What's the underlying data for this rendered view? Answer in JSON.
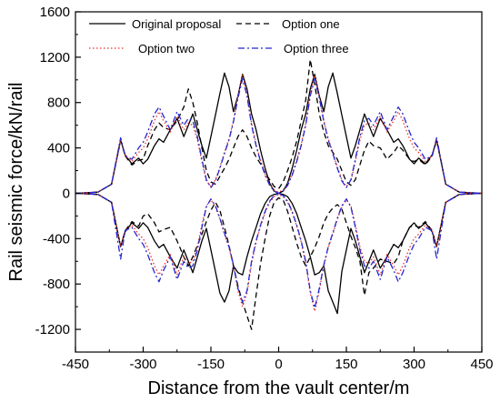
{
  "chart_data": {
    "type": "line",
    "xlabel": "Distance from the vault center/m",
    "ylabel": "Rail seismic force/kN/rail",
    "xlim": [
      -450,
      450
    ],
    "ylim": [
      -1400,
      1600
    ],
    "xticks": [
      -450,
      -300,
      -150,
      0,
      150,
      300,
      450
    ],
    "xtick_labels": [
      "-450",
      "-300",
      "-150",
      "0",
      "150",
      "300",
      "450"
    ],
    "yticks": [
      -1200,
      -800,
      -400,
      0,
      400,
      800,
      1200,
      1600
    ],
    "ytick_labels": [
      "-1200",
      "-800",
      "-400",
      "0",
      "400",
      "800",
      "1200",
      "1600"
    ],
    "grid": false,
    "legend_position": "top",
    "series": [
      {
        "name": "Original proposal",
        "color": "#000000",
        "dash": "solid",
        "x": [
          -450,
          -400,
          -370,
          -350,
          -340,
          -325,
          -310,
          -300,
          -290,
          -275,
          -265,
          -255,
          -240,
          -225,
          -210,
          -200,
          -190,
          -180,
          -170,
          -160,
          -150,
          -140,
          -130,
          -120,
          -110,
          -100,
          -90,
          -80,
          -70,
          -60,
          -50,
          -40,
          -30,
          -20,
          -10,
          0,
          10,
          20,
          30,
          40,
          50,
          60,
          70,
          80,
          90,
          100,
          110,
          120,
          130,
          140,
          150,
          160,
          170,
          180,
          190,
          200,
          210,
          225,
          240,
          255,
          265,
          275,
          290,
          300,
          310,
          325,
          340,
          350,
          370,
          400,
          450
        ],
        "upper": [
          0,
          10,
          80,
          470,
          340,
          260,
          310,
          260,
          300,
          420,
          480,
          450,
          560,
          660,
          500,
          600,
          700,
          560,
          420,
          310,
          500,
          690,
          880,
          1060,
          940,
          720,
          860,
          1050,
          920,
          700,
          560,
          380,
          220,
          90,
          20,
          0,
          20,
          90,
          220,
          380,
          560,
          700,
          920,
          1050,
          860,
          720,
          940,
          1060,
          880,
          690,
          500,
          310,
          420,
          560,
          700,
          600,
          500,
          660,
          560,
          450,
          480,
          420,
          300,
          260,
          310,
          260,
          340,
          470,
          80,
          10,
          0
        ],
        "lower": [
          0,
          -10,
          -80,
          -470,
          -340,
          -260,
          -310,
          -260,
          -300,
          -420,
          -480,
          -450,
          -560,
          -660,
          -500,
          -600,
          -700,
          -560,
          -420,
          -310,
          -500,
          -690,
          -880,
          -960,
          -860,
          -640,
          -700,
          -720,
          -560,
          -420,
          -300,
          -180,
          -90,
          -30,
          -10,
          0,
          -10,
          -30,
          -90,
          -180,
          -300,
          -420,
          -560,
          -720,
          -700,
          -640,
          -860,
          -960,
          -1060,
          -690,
          -500,
          -310,
          -420,
          -560,
          -700,
          -600,
          -500,
          -660,
          -560,
          -450,
          -480,
          -420,
          -300,
          -260,
          -310,
          -260,
          -340,
          -470,
          -80,
          -10,
          0
        ]
      },
      {
        "name": "Option one",
        "color": "#000000",
        "dash": "6,4",
        "x": [
          -450,
          -400,
          -370,
          -350,
          -340,
          -325,
          -310,
          -300,
          -290,
          -275,
          -265,
          -255,
          -240,
          -225,
          -210,
          -200,
          -190,
          -180,
          -170,
          -160,
          -150,
          -140,
          -130,
          -120,
          -110,
          -100,
          -90,
          -80,
          -70,
          -60,
          -50,
          -40,
          -30,
          -20,
          -10,
          0,
          10,
          20,
          30,
          40,
          50,
          60,
          70,
          80,
          90,
          100,
          110,
          120,
          130,
          140,
          150,
          160,
          170,
          180,
          190,
          200,
          210,
          225,
          240,
          255,
          265,
          275,
          290,
          300,
          310,
          325,
          340,
          350,
          370,
          400,
          450
        ],
        "upper": [
          0,
          10,
          80,
          470,
          330,
          250,
          290,
          300,
          420,
          560,
          620,
          580,
          560,
          640,
          760,
          920,
          800,
          620,
          400,
          200,
          100,
          80,
          150,
          220,
          300,
          400,
          500,
          560,
          500,
          400,
          320,
          260,
          180,
          120,
          60,
          40,
          100,
          200,
          320,
          460,
          640,
          820,
          1180,
          960,
          700,
          540,
          420,
          360,
          300,
          200,
          100,
          70,
          120,
          250,
          380,
          460,
          420,
          400,
          300,
          360,
          420,
          380,
          300,
          280,
          300,
          250,
          330,
          470,
          80,
          10,
          0
        ],
        "lower": [
          0,
          -10,
          -80,
          -470,
          -330,
          -250,
          -290,
          -200,
          -180,
          -260,
          -340,
          -320,
          -300,
          -420,
          -560,
          -640,
          -560,
          -460,
          -360,
          -250,
          -150,
          -80,
          -150,
          -300,
          -460,
          -640,
          -820,
          -960,
          -1080,
          -1200,
          -900,
          -620,
          -400,
          -200,
          -80,
          -40,
          -60,
          -160,
          -300,
          -440,
          -560,
          -640,
          -560,
          -480,
          -380,
          -260,
          -180,
          -130,
          -100,
          -140,
          -260,
          -380,
          -480,
          -600,
          -900,
          -700,
          -660,
          -580,
          -600,
          -620,
          -560,
          -420,
          -300,
          -280,
          -300,
          -250,
          -330,
          -470,
          -80,
          -10,
          0
        ]
      },
      {
        "name": "Option two",
        "color": "#e8322a",
        "dash": "1.5,2.5",
        "x": [
          -450,
          -400,
          -370,
          -350,
          -340,
          -325,
          -310,
          -300,
          -290,
          -275,
          -265,
          -255,
          -240,
          -225,
          -210,
          -200,
          -190,
          -180,
          -170,
          -160,
          -150,
          -140,
          -130,
          -120,
          -110,
          -100,
          -90,
          -80,
          -70,
          -60,
          -50,
          -40,
          -30,
          -20,
          -10,
          0,
          10,
          20,
          30,
          40,
          50,
          60,
          70,
          80,
          90,
          100,
          110,
          120,
          130,
          140,
          150,
          160,
          170,
          180,
          190,
          200,
          210,
          225,
          240,
          255,
          265,
          275,
          290,
          300,
          310,
          325,
          340,
          350,
          370,
          400,
          450
        ],
        "upper": [
          0,
          10,
          80,
          470,
          330,
          280,
          360,
          400,
          480,
          640,
          720,
          640,
          540,
          680,
          560,
          620,
          600,
          470,
          280,
          110,
          60,
          120,
          230,
          360,
          480,
          640,
          860,
          1040,
          880,
          620,
          430,
          290,
          170,
          80,
          30,
          10,
          30,
          80,
          170,
          290,
          430,
          620,
          880,
          1040,
          860,
          640,
          480,
          360,
          230,
          120,
          60,
          110,
          280,
          470,
          600,
          620,
          560,
          680,
          540,
          640,
          720,
          640,
          480,
          400,
          360,
          280,
          330,
          470,
          80,
          10,
          0
        ],
        "lower": [
          0,
          -10,
          -80,
          -470,
          -330,
          -280,
          -360,
          -400,
          -480,
          -640,
          -720,
          -640,
          -540,
          -720,
          -560,
          -620,
          -600,
          -470,
          -280,
          -110,
          -60,
          -120,
          -230,
          -360,
          -480,
          -640,
          -860,
          -1000,
          -880,
          -620,
          -430,
          -290,
          -170,
          -80,
          -30,
          -10,
          -30,
          -80,
          -170,
          -290,
          -430,
          -620,
          -880,
          -1040,
          -860,
          -640,
          -480,
          -360,
          -230,
          -120,
          -60,
          -110,
          -280,
          -470,
          -600,
          -620,
          -560,
          -720,
          -540,
          -640,
          -720,
          -640,
          -480,
          -400,
          -360,
          -280,
          -330,
          -470,
          -80,
          -10,
          0
        ]
      },
      {
        "name": "Option three",
        "color": "#2626d4",
        "dash": "7,3,2,3",
        "x": [
          -450,
          -400,
          -370,
          -350,
          -340,
          -325,
          -310,
          -300,
          -290,
          -275,
          -265,
          -255,
          -240,
          -225,
          -210,
          -200,
          -190,
          -180,
          -170,
          -160,
          -150,
          -140,
          -130,
          -120,
          -110,
          -100,
          -90,
          -80,
          -70,
          -60,
          -50,
          -40,
          -30,
          -20,
          -10,
          0,
          10,
          20,
          30,
          40,
          50,
          60,
          70,
          80,
          90,
          100,
          110,
          120,
          130,
          140,
          150,
          160,
          170,
          180,
          190,
          200,
          210,
          225,
          240,
          255,
          265,
          275,
          290,
          300,
          310,
          325,
          340,
          350,
          370,
          400,
          450
        ],
        "upper": [
          0,
          10,
          80,
          490,
          330,
          300,
          400,
          450,
          540,
          700,
          760,
          680,
          560,
          720,
          600,
          660,
          640,
          500,
          300,
          120,
          50,
          110,
          220,
          350,
          470,
          630,
          840,
          1010,
          860,
          600,
          420,
          280,
          160,
          70,
          20,
          0,
          20,
          70,
          160,
          280,
          420,
          600,
          860,
          1010,
          840,
          630,
          470,
          350,
          220,
          110,
          50,
          120,
          300,
          500,
          640,
          660,
          600,
          720,
          560,
          680,
          760,
          700,
          540,
          450,
          400,
          300,
          330,
          490,
          80,
          10,
          0
        ],
        "lower": [
          0,
          -10,
          -80,
          -580,
          -330,
          -300,
          -400,
          -450,
          -540,
          -700,
          -780,
          -680,
          -560,
          -760,
          -600,
          -660,
          -640,
          -500,
          -300,
          -120,
          -50,
          -110,
          -220,
          -350,
          -470,
          -630,
          -840,
          -960,
          -860,
          -600,
          -420,
          -280,
          -160,
          -70,
          -20,
          0,
          -20,
          -70,
          -160,
          -280,
          -420,
          -600,
          -860,
          -1010,
          -840,
          -630,
          -470,
          -350,
          -220,
          -110,
          -50,
          -120,
          -300,
          -500,
          -640,
          -660,
          -600,
          -760,
          -560,
          -680,
          -780,
          -700,
          -540,
          -450,
          -400,
          -300,
          -330,
          -580,
          -80,
          -10,
          0
        ]
      }
    ]
  }
}
